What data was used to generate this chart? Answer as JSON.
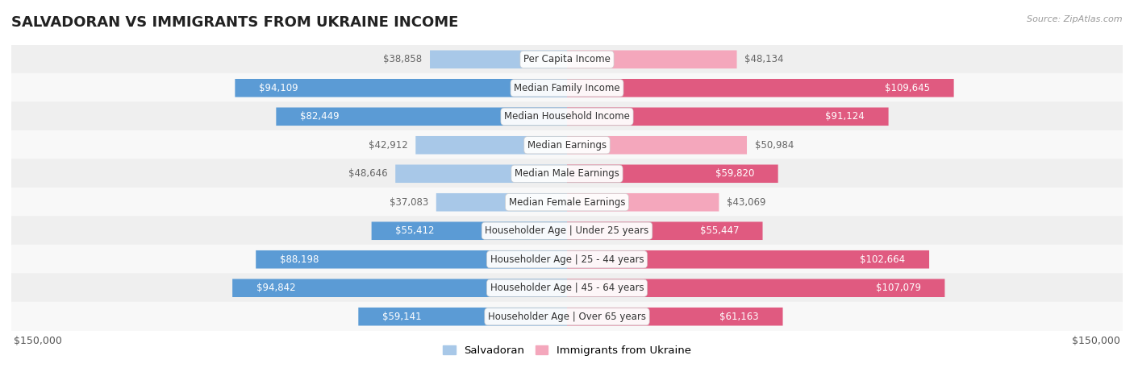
{
  "title": "SALVADORAN VS IMMIGRANTS FROM UKRAINE INCOME",
  "source": "Source: ZipAtlas.com",
  "categories": [
    "Per Capita Income",
    "Median Family Income",
    "Median Household Income",
    "Median Earnings",
    "Median Male Earnings",
    "Median Female Earnings",
    "Householder Age | Under 25 years",
    "Householder Age | 25 - 44 years",
    "Householder Age | 45 - 64 years",
    "Householder Age | Over 65 years"
  ],
  "salvadoran_values": [
    38858,
    94109,
    82449,
    42912,
    48646,
    37083,
    55412,
    88198,
    94842,
    59141
  ],
  "ukraine_values": [
    48134,
    109645,
    91124,
    50984,
    59820,
    43069,
    55447,
    102664,
    107079,
    61163
  ],
  "salvadoran_labels": [
    "$38,858",
    "$94,109",
    "$82,449",
    "$42,912",
    "$48,646",
    "$37,083",
    "$55,412",
    "$88,198",
    "$94,842",
    "$59,141"
  ],
  "ukraine_labels": [
    "$48,134",
    "$109,645",
    "$91,124",
    "$50,984",
    "$59,820",
    "$43,069",
    "$55,447",
    "$102,664",
    "$107,079",
    "$61,163"
  ],
  "salvadoran_color_light": "#A8C8E8",
  "salvadoran_color_dark": "#5B9BD5",
  "ukraine_color_light": "#F4A7BC",
  "ukraine_color_dark": "#E05A80",
  "inside_label_color": "#FFFFFF",
  "outside_label_color": "#666666",
  "max_value": 150000,
  "bar_height": 0.62,
  "row_bg_colors": [
    "#EFEFEF",
    "#F8F8F8"
  ],
  "label_fontsize": 8.5,
  "title_fontsize": 13,
  "category_fontsize": 8.5,
  "legend_fontsize": 9.5,
  "background_color": "#FFFFFF",
  "inside_threshold": 55000
}
